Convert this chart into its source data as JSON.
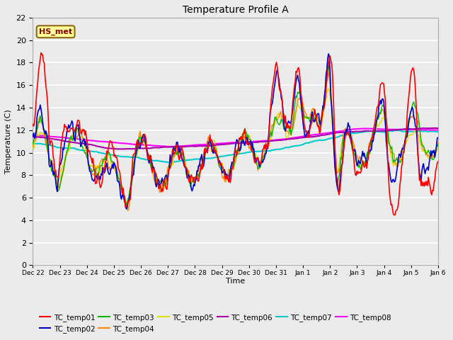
{
  "title": "Temperature Profile A",
  "xlabel": "Time",
  "ylabel": "Temperature (C)",
  "ylim": [
    0,
    22
  ],
  "yticks": [
    0,
    2,
    4,
    6,
    8,
    10,
    12,
    14,
    16,
    18,
    20,
    22
  ],
  "annotation_text": "HS_met",
  "annotation_color": "#8B0000",
  "annotation_bg": "#FFFF99",
  "annotation_border": "#8B6914",
  "series_colors": {
    "TC_temp01": "#FF0000",
    "TC_temp02": "#0000CC",
    "TC_temp03": "#00BB00",
    "TC_temp04": "#FF8800",
    "TC_temp05": "#DDDD00",
    "TC_temp06": "#AA00AA",
    "TC_temp07": "#00CCCC",
    "TC_temp08": "#FF00FF"
  },
  "bg_color": "#EBEBEB",
  "grid_color": "#FFFFFF",
  "n_points": 500
}
